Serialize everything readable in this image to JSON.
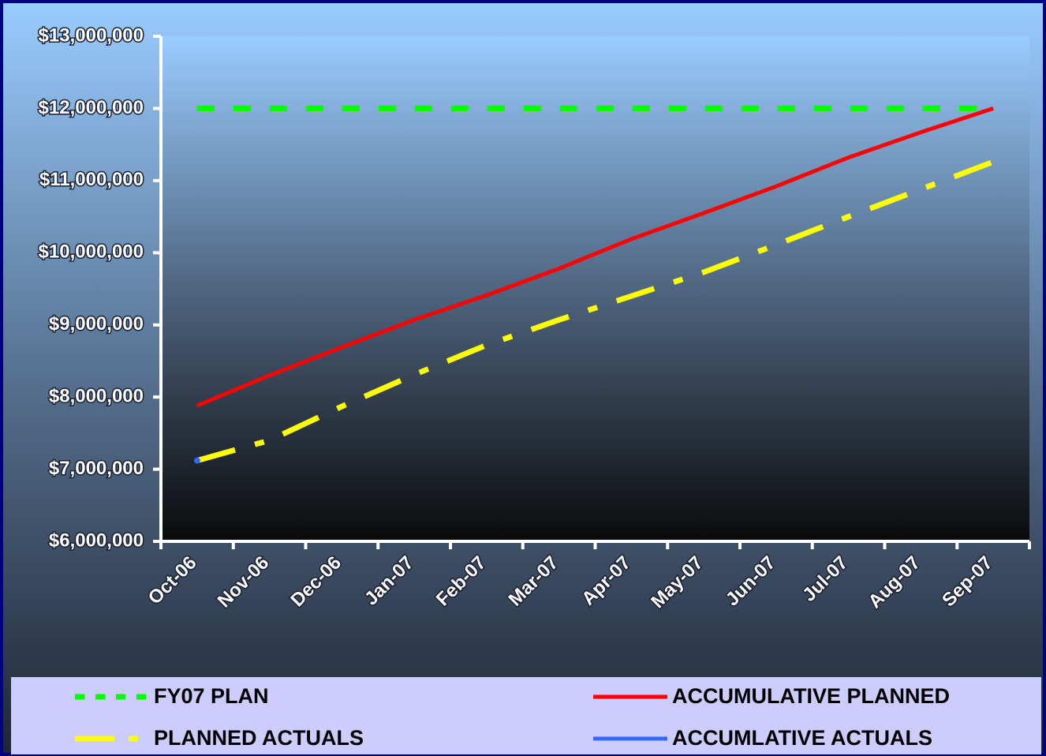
{
  "chart_data": {
    "type": "line",
    "categories": [
      "Oct-06",
      "Nov-06",
      "Dec-06",
      "Jan-07",
      "Feb-07",
      "Mar-07",
      "Apr-07",
      "May-07",
      "Jun-07",
      "Jul-07",
      "Aug-07",
      "Sep-07"
    ],
    "series": [
      {
        "name": "FY07 PLAN",
        "color": "#00ff00",
        "dash": "dashed",
        "values": [
          12000000,
          12000000,
          12000000,
          12000000,
          12000000,
          12000000,
          12000000,
          12000000,
          12000000,
          12000000,
          12000000,
          12000000
        ]
      },
      {
        "name": "ACCUMULATIVE PLANNED",
        "color": "#ff0000",
        "dash": "solid",
        "values": [
          7880000,
          8300000,
          8690000,
          9070000,
          9410000,
          9780000,
          10190000,
          10550000,
          10920000,
          11320000,
          11670000,
          12000000
        ]
      },
      {
        "name": "PLANNED ACTUALS",
        "color": "#ffff00",
        "dash": "dashdot",
        "values": [
          7120000,
          7400000,
          7870000,
          8310000,
          8720000,
          9070000,
          9400000,
          9730000,
          10110000,
          10500000,
          10880000,
          11260000
        ]
      },
      {
        "name": "ACCUMLATIVE ACTUALS",
        "color": "#3366ff",
        "dash": "solid",
        "values": [
          7120000,
          null,
          null,
          null,
          null,
          null,
          null,
          null,
          null,
          null,
          null,
          null
        ]
      }
    ],
    "ylim": [
      6000000,
      13000000
    ],
    "yticks": [
      {
        "value": 6000000,
        "label": "$6,000,000"
      },
      {
        "value": 7000000,
        "label": "$7,000,000"
      },
      {
        "value": 8000000,
        "label": "$8,000,000"
      },
      {
        "value": 9000000,
        "label": "$9,000,000"
      },
      {
        "value": 10000000,
        "label": "$10,000,000"
      },
      {
        "value": 11000000,
        "label": "$11,000,000"
      },
      {
        "value": 12000000,
        "label": "$12,000,000"
      },
      {
        "value": 13000000,
        "label": "$13,000,000"
      }
    ],
    "grid": false,
    "legend": "bottom"
  }
}
